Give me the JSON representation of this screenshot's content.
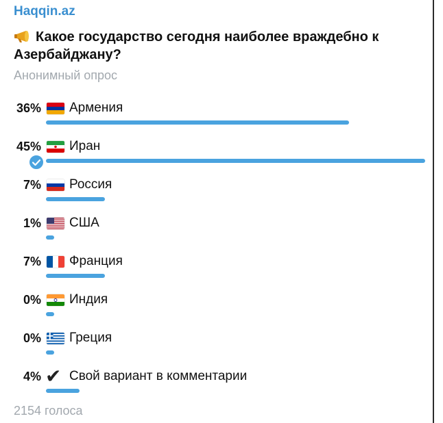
{
  "channel": "Haqqin.az",
  "question": {
    "icon": "megaphone-icon",
    "text": "Какое государство сегодня наиболее враждебно к Азербайджану?"
  },
  "poll_type": "Анонимный опрос",
  "accent_color": "#4aa3df",
  "options": [
    {
      "percent_label": "36%",
      "percent": 36,
      "label": "Армения",
      "icon": "armenia-flag-icon",
      "chosen": false
    },
    {
      "percent_label": "45%",
      "percent": 45,
      "label": "Иран",
      "icon": "iran-flag-icon",
      "chosen": true
    },
    {
      "percent_label": "7%",
      "percent": 7,
      "label": "Россия",
      "icon": "russia-flag-icon",
      "chosen": false
    },
    {
      "percent_label": "1%",
      "percent": 1,
      "label": "США",
      "icon": "usa-flag-icon",
      "chosen": false
    },
    {
      "percent_label": "7%",
      "percent": 7,
      "label": "Франция",
      "icon": "france-flag-icon",
      "chosen": false
    },
    {
      "percent_label": "0%",
      "percent": 0,
      "label": "Индия",
      "icon": "india-flag-icon",
      "chosen": false
    },
    {
      "percent_label": "0%",
      "percent": 0,
      "label": "Греция",
      "icon": "greece-flag-icon",
      "chosen": false
    },
    {
      "percent_label": "4%",
      "percent": 4,
      "label": "Свой вариант в комментарии",
      "icon": "check-mark-icon",
      "chosen": false
    }
  ],
  "votes": "2154 голоса"
}
